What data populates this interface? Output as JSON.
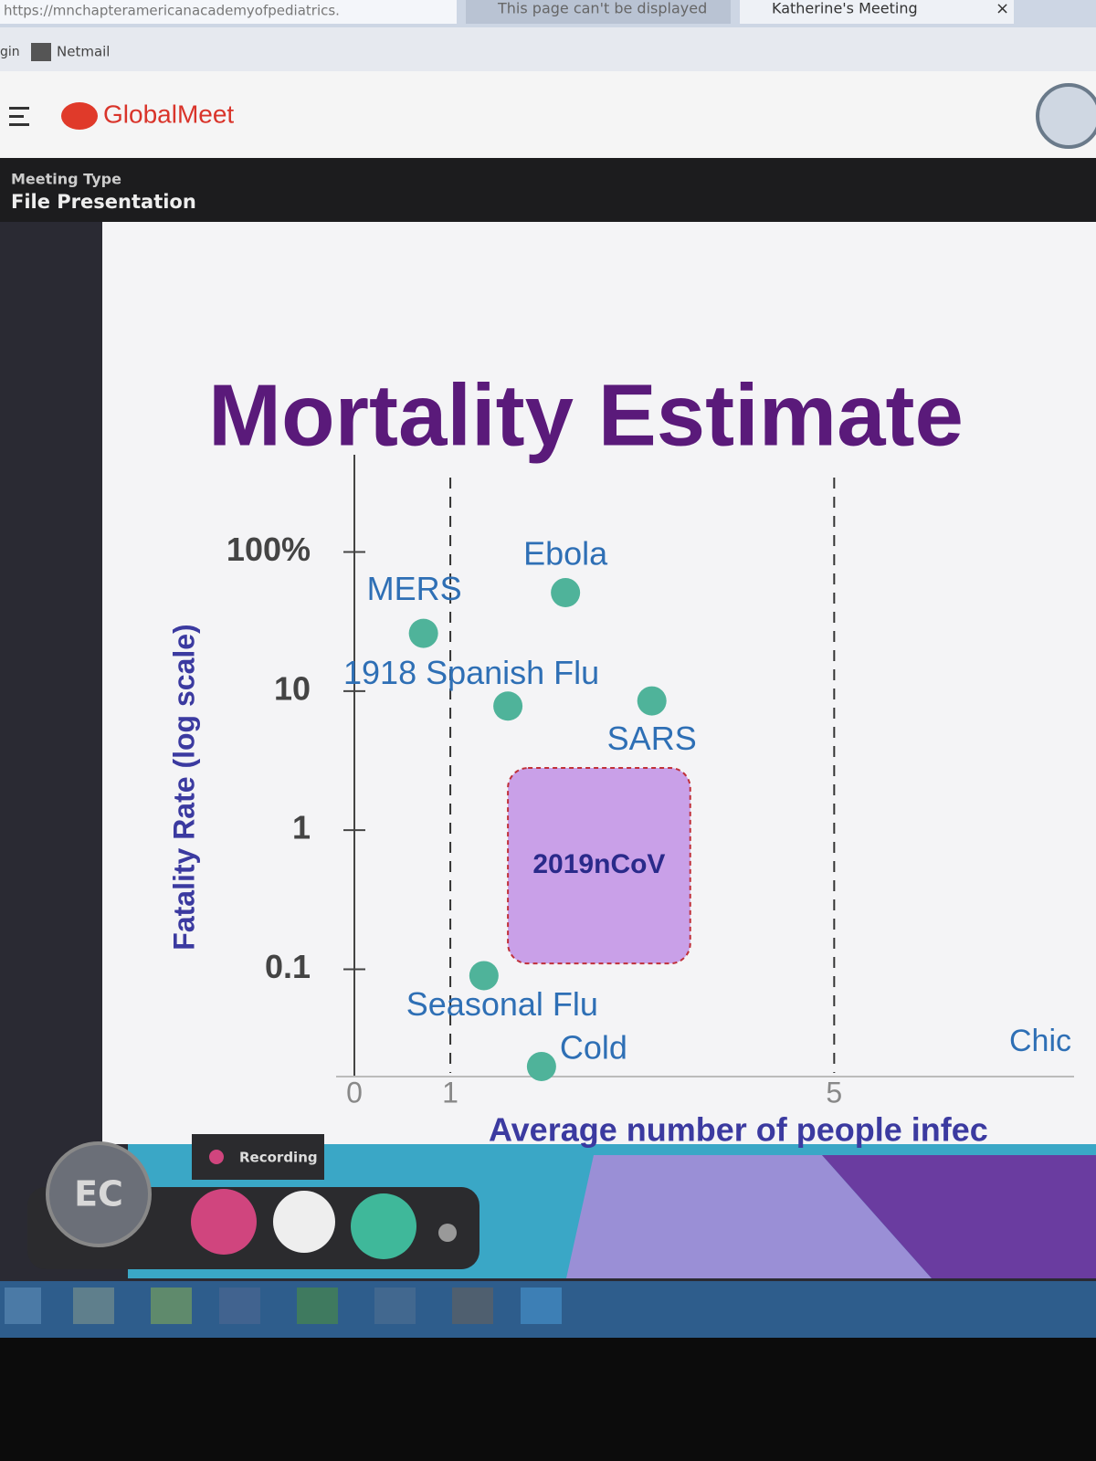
{
  "browser": {
    "url": "https://mnchapteramericanacademyofpediatrics.",
    "tabs": [
      "This page can't be displayed",
      "Katherine's Meeting"
    ],
    "close": "×",
    "bookmarks": [
      "gin",
      "Netmail"
    ]
  },
  "app": {
    "brand": "GlobalMeet",
    "meeting_type_label": "Meeting Type",
    "meeting_type": "File Presentation",
    "recording": "Recording",
    "avatar": "EC"
  },
  "chart_data": {
    "type": "scatter",
    "title": "Mortality Estimate",
    "y_label": "Fatality Rate (log scale)",
    "x_label": "Average number of people infec",
    "xlim": [
      0,
      7.5
    ],
    "xticks": [
      0,
      1,
      5
    ],
    "x_dashed_lines": true,
    "ylim": [
      0.015,
      500
    ],
    "y_log": true,
    "yticks": [
      {
        "value": 100,
        "label": "100%"
      },
      10,
      1,
      0.1
    ],
    "color": "#4fb39a",
    "label_color": "#2e6fb5",
    "points": [
      {
        "label": "MERS",
        "x": 0.72,
        "y": 26
      },
      {
        "label": "Ebola",
        "x": 2.2,
        "y": 51
      },
      {
        "label": "1918 Spanish Flu",
        "x": 1.6,
        "y": 7.8
      },
      {
        "label": "SARS",
        "x": 3.1,
        "y": 8.5
      },
      {
        "label": "Seasonal Flu",
        "x": 1.35,
        "y": 0.09
      },
      {
        "label": "Cold",
        "x": 1.95,
        "y": 0.02
      }
    ],
    "region": {
      "label": "2019nCoV",
      "x": [
        1.6,
        3.5
      ],
      "y": [
        0.11,
        2.8
      ],
      "color": "#c9a0e8"
    },
    "annotations": [
      "Chic"
    ]
  }
}
